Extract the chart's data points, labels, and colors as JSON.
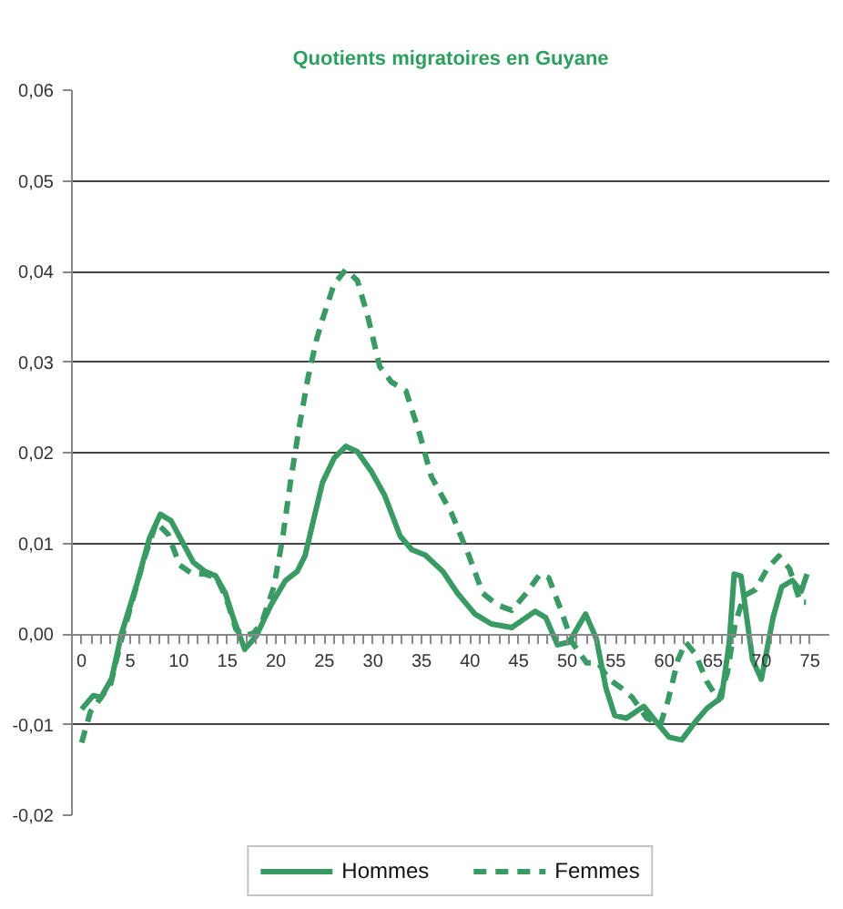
{
  "chart_data": {
    "type": "line",
    "title": "Quotients migratoires en Guyane",
    "xlim": [
      -1,
      77
    ],
    "ylim": [
      -0.02,
      0.06
    ],
    "xticks": [
      0,
      {
        "value": 1,
        "label": null
      },
      {
        "value": 2,
        "label": null
      },
      {
        "value": 3,
        "label": null
      },
      {
        "value": 4,
        "label": null
      },
      5,
      {
        "value": 6,
        "label": null
      },
      {
        "value": 7,
        "label": null
      },
      {
        "value": 8,
        "label": null
      },
      {
        "value": 9,
        "label": null
      },
      10,
      {
        "value": 11,
        "label": null
      },
      {
        "value": 12,
        "label": null
      },
      {
        "value": 13,
        "label": null
      },
      {
        "value": 14,
        "label": null
      },
      15,
      {
        "value": 16,
        "label": null
      },
      {
        "value": 17,
        "label": null
      },
      {
        "value": 18,
        "label": null
      },
      {
        "value": 19,
        "label": null
      },
      20,
      {
        "value": 21,
        "label": null
      },
      {
        "value": 22,
        "label": null
      },
      {
        "value": 23,
        "label": null
      },
      {
        "value": 24,
        "label": null
      },
      25,
      {
        "value": 26,
        "label": null
      },
      {
        "value": 27,
        "label": null
      },
      {
        "value": 28,
        "label": null
      },
      {
        "value": 29,
        "label": null
      },
      30,
      {
        "value": 31,
        "label": null
      },
      {
        "value": 32,
        "label": null
      },
      {
        "value": 33,
        "label": null
      },
      {
        "value": 34,
        "label": null
      },
      35,
      {
        "value": 36,
        "label": null
      },
      {
        "value": 37,
        "label": null
      },
      {
        "value": 38,
        "label": null
      },
      {
        "value": 39,
        "label": null
      },
      40,
      {
        "value": 41,
        "label": null
      },
      {
        "value": 42,
        "label": null
      },
      {
        "value": 43,
        "label": null
      },
      {
        "value": 44,
        "label": null
      },
      45,
      {
        "value": 46,
        "label": null
      },
      {
        "value": 47,
        "label": null
      },
      {
        "value": 48,
        "label": null
      },
      {
        "value": 49,
        "label": null
      },
      50,
      {
        "value": 51,
        "label": null
      },
      {
        "value": 52,
        "label": null
      },
      {
        "value": 53,
        "label": null
      },
      {
        "value": 54,
        "label": null
      },
      55,
      {
        "value": 56,
        "label": null
      },
      {
        "value": 57,
        "label": null
      },
      {
        "value": 58,
        "label": null
      },
      {
        "value": 59,
        "label": null
      },
      60,
      {
        "value": 61,
        "label": null
      },
      {
        "value": 62,
        "label": null
      },
      {
        "value": 63,
        "label": null
      },
      {
        "value": 64,
        "label": null
      },
      65,
      {
        "value": 66,
        "label": null
      },
      {
        "value": 67,
        "label": null
      },
      {
        "value": 68,
        "label": null
      },
      {
        "value": 69,
        "label": null
      },
      70,
      {
        "value": 71,
        "label": null
      },
      {
        "value": 72,
        "label": null
      },
      {
        "value": 73,
        "label": null
      },
      {
        "value": 74,
        "label": null
      },
      75
    ],
    "yticks": [
      {
        "value": -0.02,
        "label": "-0,02"
      },
      {
        "value": -0.01,
        "label": "-0,01"
      },
      {
        "value": 0,
        "label": "0,00"
      },
      {
        "value": 0.01,
        "label": "0,01"
      },
      {
        "value": 0.02,
        "label": "0,02"
      },
      {
        "value": 0.03,
        "label": "0,03"
      },
      {
        "value": 0.04,
        "label": "0,04"
      },
      {
        "value": 0.05,
        "label": "0,05"
      },
      {
        "value": 0.06,
        "label": "0,06"
      }
    ],
    "grid": "y",
    "legend": "bottom",
    "line_style": "solid",
    "series": [
      {
        "name": "Hommes",
        "color": "#3a9a64",
        "x": [
          0,
          1.2,
          2.0,
          3.1,
          4.1,
          5.6,
          7.0,
          8.1,
          9.2,
          10.3,
          11.5,
          12.7,
          13.8,
          14.8,
          15.7,
          16.8,
          18.0,
          19.5,
          21.0,
          22.2,
          23.0,
          23.6,
          24.8,
          26.0,
          27.2,
          28.4,
          29.8,
          31.2,
          32.8,
          34.0,
          35.4,
          37.2,
          38.7,
          40.5,
          42.2,
          44.3,
          46.7,
          47.8,
          49.0,
          50.2,
          51.9,
          53.0,
          54.0,
          54.9,
          56.1,
          57.9,
          59.4,
          60.5,
          61.8,
          63.2,
          64.4,
          65.9,
          66.7,
          67.2,
          67.9,
          69.1,
          70.0,
          71.2,
          72.1,
          73.2,
          74.1,
          74.7
        ],
        "values": [
          -0.0083,
          -0.0068,
          -0.007,
          -0.0049,
          0.0,
          0.0052,
          0.0106,
          0.0132,
          0.0125,
          0.0103,
          0.0079,
          0.0069,
          0.0064,
          0.0045,
          0.0015,
          -0.0017,
          -0.0002,
          0.0032,
          0.0059,
          0.0069,
          0.0086,
          0.0113,
          0.0167,
          0.0194,
          0.0207,
          0.0201,
          0.018,
          0.0153,
          0.0108,
          0.0093,
          0.0087,
          0.0069,
          0.0045,
          0.0022,
          0.0011,
          0.0007,
          0.0025,
          0.0018,
          -0.0012,
          -0.0009,
          0.0022,
          -0.0005,
          -0.006,
          -0.009,
          -0.0093,
          -0.008,
          -0.01,
          -0.0114,
          -0.0117,
          -0.0097,
          -0.0082,
          -0.007,
          -0.0009,
          0.0066,
          0.0064,
          -0.0029,
          -0.005,
          0.0018,
          0.0052,
          0.0059,
          0.0047,
          0.0066
        ]
      },
      {
        "name": "Femmes",
        "color": "#3a9a64",
        "line_style": "dashed",
        "x": [
          0,
          0.9,
          1.8,
          3.0,
          4.0,
          5.0,
          6.5,
          7.7,
          8.9,
          10.1,
          11.3,
          12.7,
          13.9,
          14.9,
          15.9,
          16.8,
          17.7,
          18.5,
          19.8,
          20.7,
          21.5,
          22.4,
          23.3,
          24.2,
          24.8,
          26.0,
          27.2,
          28.4,
          29.5,
          30.7,
          31.9,
          33.4,
          34.8,
          36.0,
          38.1,
          39.9,
          41.3,
          42.8,
          44.3,
          45.8,
          47.2,
          48.1,
          49.3,
          50.5,
          52.0,
          53.2,
          54.3,
          55.5,
          56.7,
          58.2,
          59.6,
          60.4,
          61.4,
          62.2,
          63.2,
          64.4,
          65.6,
          66.5,
          67.3,
          68.2,
          69.4,
          70.6,
          71.8,
          72.9,
          74.0,
          74.6
        ],
        "values": [
          -0.012,
          -0.0086,
          -0.0073,
          -0.0055,
          -0.001,
          0.0028,
          0.0085,
          0.0123,
          0.011,
          0.0076,
          0.0067,
          0.0066,
          0.0062,
          0.0039,
          0.0005,
          -0.0002,
          0.0001,
          0.0011,
          0.0052,
          0.0106,
          0.0167,
          0.0228,
          0.0282,
          0.0325,
          0.0347,
          0.0386,
          0.0402,
          0.039,
          0.0349,
          0.0295,
          0.0278,
          0.0268,
          0.0221,
          0.0174,
          0.0133,
          0.0086,
          0.0045,
          0.0032,
          0.0026,
          0.0045,
          0.0066,
          0.0062,
          0.0028,
          -0.0009,
          -0.0032,
          -0.0032,
          -0.005,
          -0.0059,
          -0.007,
          -0.0093,
          -0.01,
          -0.0073,
          -0.0029,
          -0.0009,
          -0.0022,
          -0.0053,
          -0.0073,
          -0.0043,
          0.0011,
          0.0042,
          0.0049,
          0.0072,
          0.0086,
          0.0072,
          0.0035,
          0.0035
        ]
      }
    ]
  }
}
